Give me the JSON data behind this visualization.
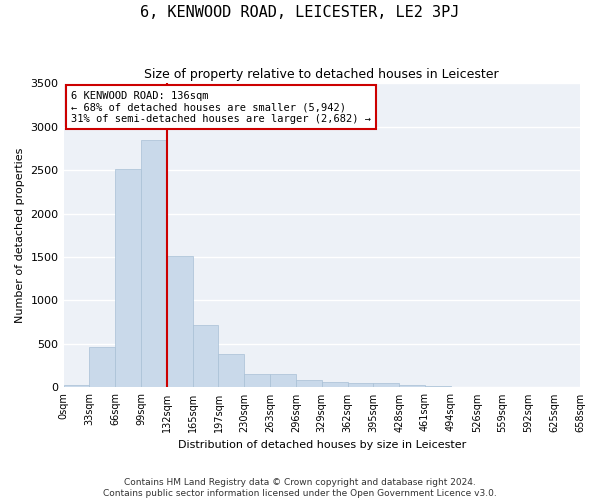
{
  "title": "6, KENWOOD ROAD, LEICESTER, LE2 3PJ",
  "subtitle": "Size of property relative to detached houses in Leicester",
  "xlabel": "Distribution of detached houses by size in Leicester",
  "ylabel": "Number of detached properties",
  "bar_color": "#c9d9ea",
  "bar_edge_color": "#a8c0d6",
  "background_color": "#edf1f7",
  "grid_color": "#ffffff",
  "bin_labels": [
    "0sqm",
    "33sqm",
    "66sqm",
    "99sqm",
    "132sqm",
    "165sqm",
    "197sqm",
    "230sqm",
    "263sqm",
    "296sqm",
    "329sqm",
    "362sqm",
    "395sqm",
    "428sqm",
    "461sqm",
    "494sqm",
    "526sqm",
    "559sqm",
    "592sqm",
    "625sqm",
    "658sqm"
  ],
  "bar_values": [
    30,
    470,
    2510,
    2840,
    1510,
    720,
    390,
    160,
    155,
    80,
    60,
    50,
    50,
    25,
    15,
    10,
    5,
    3,
    2,
    1
  ],
  "ylim": [
    0,
    3500
  ],
  "red_line_x": 4,
  "annotation_line1": "6 KENWOOD ROAD: 136sqm",
  "annotation_line2": "← 68% of detached houses are smaller (5,942)",
  "annotation_line3": "31% of semi-detached houses are larger (2,682) →",
  "annotation_color": "#cc0000",
  "footer_line1": "Contains HM Land Registry data © Crown copyright and database right 2024.",
  "footer_line2": "Contains public sector information licensed under the Open Government Licence v3.0.",
  "yticks": [
    0,
    500,
    1000,
    1500,
    2000,
    2500,
    3000,
    3500
  ],
  "title_fontsize": 11,
  "subtitle_fontsize": 9,
  "ylabel_fontsize": 8,
  "xlabel_fontsize": 8,
  "tick_fontsize": 8,
  "xtick_fontsize": 7,
  "footer_fontsize": 6.5,
  "annotation_fontsize": 7.5
}
